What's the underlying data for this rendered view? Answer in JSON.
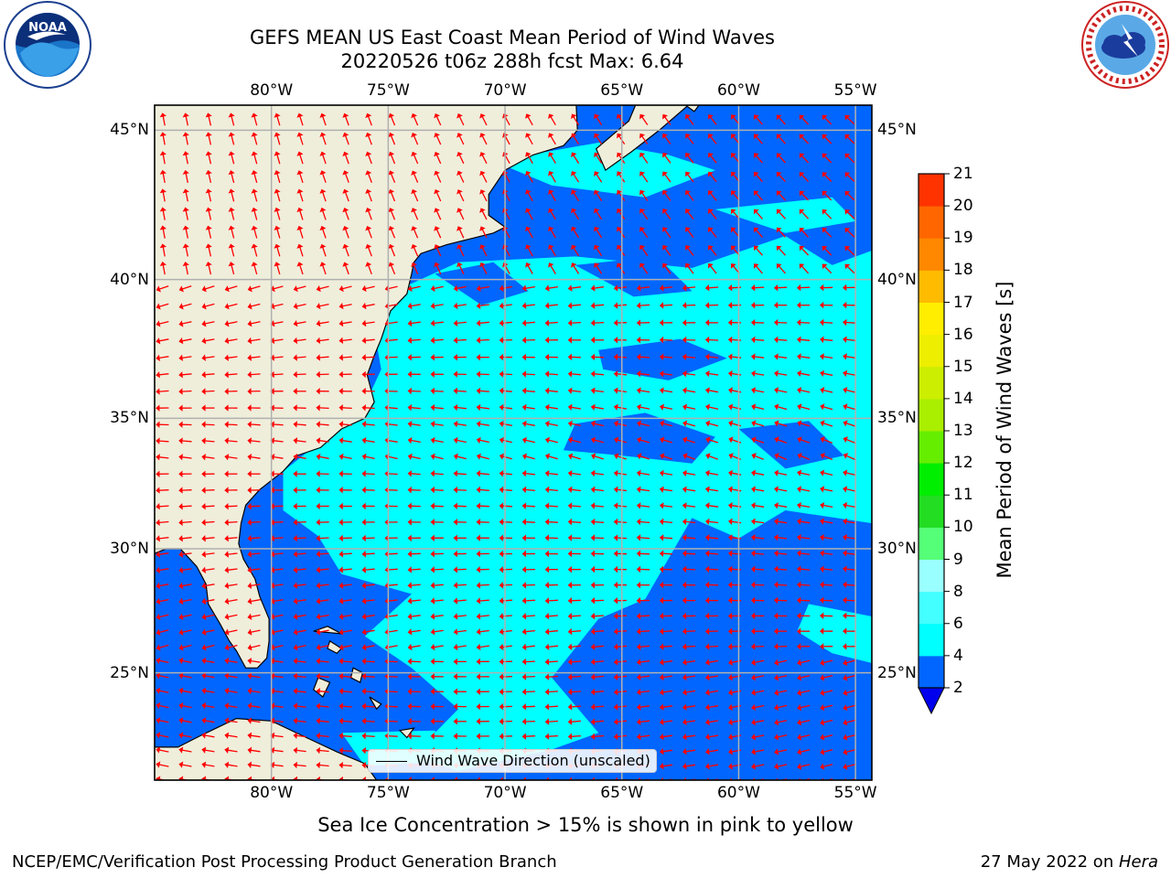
{
  "header": {
    "title_line1": "GEFS MEAN US East Coast Mean Period of Wind Waves",
    "title_line2": "20220526 t06z 288h fcst   Max: 6.64"
  },
  "logos": {
    "noaa": {
      "icon": "noaa-logo-icon",
      "ring_text": "NATIONAL OCEANIC AND ATMOSPHERIC ADMINISTRATION · U.S. DEPARTMENT OF COMMERCE",
      "center_text": "NOAA"
    },
    "nws": {
      "icon": "nws-logo-icon",
      "ring_text": "NATIONAL WEATHER SERVICE"
    }
  },
  "map": {
    "lon_labels": [
      "80°W",
      "75°W",
      "70°W",
      "65°W",
      "60°W",
      "55°W"
    ],
    "lat_labels": [
      "45°N",
      "40°N",
      "35°N",
      "30°N",
      "25°N"
    ],
    "extent": {
      "lon_min": -85,
      "lon_max": -54.3,
      "lat_min": 20.5,
      "lat_max": 45.8
    },
    "colors": {
      "land": "#efeedb",
      "band_2_4": "#0066ff",
      "band_4_6": "#00ffff",
      "arrow": "#ff0000",
      "grid": "#b0b0b0"
    },
    "legend": {
      "label": "Wind Wave Direction (unscaled)"
    }
  },
  "colorbar": {
    "label": "Mean Period of Wind Waves [s]",
    "ticks": [
      "2",
      "4",
      "6",
      "8",
      "9",
      "10",
      "11",
      "12",
      "13",
      "14",
      "15",
      "16",
      "17",
      "18",
      "19",
      "20",
      "21"
    ],
    "colors": [
      "#0066ff",
      "#00ffff",
      "#44ffff",
      "#99ffff",
      "#55ff77",
      "#22dd22",
      "#00ee00",
      "#66ee00",
      "#aaee00",
      "#ccee00",
      "#eeee00",
      "#ffee00",
      "#ffbb00",
      "#ff8800",
      "#ff6600",
      "#ff3300",
      "#ff0000"
    ],
    "extend_min_color": "#0000ee"
  },
  "notes": {
    "ice": "Sea Ice Concentration > 15% is shown in pink to yellow"
  },
  "footer": {
    "left": "NCEP/EMC/Verification Post Processing Product Generation Branch",
    "right_date": "27 May 2022 on ",
    "right_machine": "Hera"
  }
}
